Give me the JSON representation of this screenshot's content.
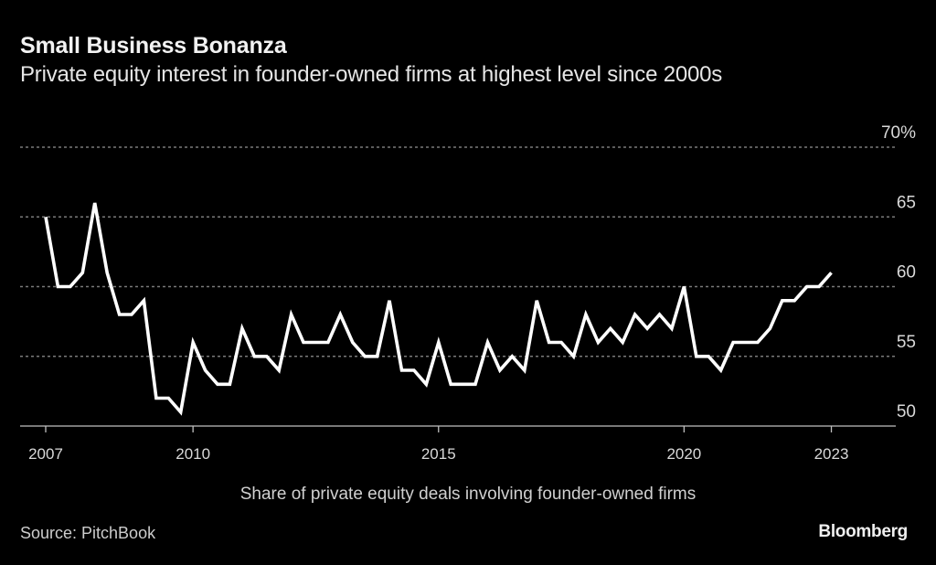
{
  "chart_data": {
    "type": "line",
    "title": "Small Business Bonanza",
    "subtitle": "Private equity interest in founder-owned firms at highest level since 2000s",
    "xlabel": "Share of private equity deals involving founder-owned firms",
    "ylabel": "",
    "ylim": [
      50,
      70
    ],
    "xlim": [
      2007,
      2024.3
    ],
    "y_ticks": [
      {
        "value": 70,
        "label": "70%"
      },
      {
        "value": 65,
        "label": "65"
      },
      {
        "value": 60,
        "label": "60"
      },
      {
        "value": 55,
        "label": "55"
      },
      {
        "value": 50,
        "label": "50"
      }
    ],
    "x_ticks": [
      {
        "value": 2007,
        "label": "2007"
      },
      {
        "value": 2010,
        "label": "2010"
      },
      {
        "value": 2015,
        "label": "2015"
      },
      {
        "value": 2020,
        "label": "2020"
      },
      {
        "value": 2023,
        "label": "2023"
      }
    ],
    "grid": true,
    "frequency": "quarterly",
    "start": 2007,
    "series": [
      {
        "name": "Share of private equity deals involving founder-owned firms",
        "color": "#ffffff",
        "values": [
          65,
          60,
          60,
          61,
          66,
          61,
          58,
          58,
          59,
          52,
          52,
          51,
          56,
          54,
          53,
          53,
          57,
          55,
          55,
          54,
          58,
          56,
          56,
          56,
          58,
          56,
          55,
          55,
          59,
          54,
          54,
          53,
          56,
          53,
          53,
          53,
          56,
          54,
          55,
          54,
          59,
          56,
          56,
          55,
          58,
          56,
          57,
          56,
          58,
          57,
          58,
          57,
          60,
          55,
          55,
          54,
          56,
          56,
          56,
          57,
          59,
          59,
          60,
          60,
          61
        ]
      }
    ]
  },
  "footer": {
    "source": "Source: PitchBook",
    "brand": "Bloomberg"
  },
  "colors": {
    "background": "#000000",
    "line": "#ffffff",
    "grid": "#7a7a7a",
    "axis": "#bfbfbf"
  }
}
